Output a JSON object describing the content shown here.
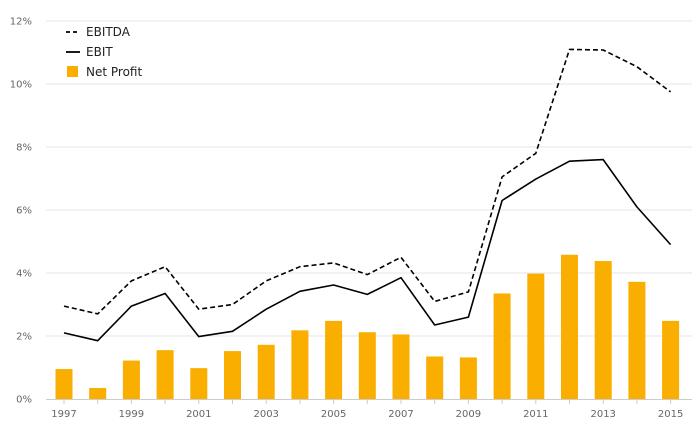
{
  "chart_data": {
    "type": "bar",
    "categories": [
      "1997",
      "1998",
      "1999",
      "2000",
      "2001",
      "2002",
      "2003",
      "2004",
      "2005",
      "2006",
      "2007",
      "2008",
      "2009",
      "2010",
      "2011",
      "2012",
      "2013",
      "2014",
      "2015"
    ],
    "x_tick_labels": [
      "1997",
      "1999",
      "2001",
      "2003",
      "2005",
      "2007",
      "2009",
      "2011",
      "2013",
      "2015"
    ],
    "y_tick_labels": [
      "0%",
      "2%",
      "4%",
      "6%",
      "8%",
      "10%",
      "12%"
    ],
    "ylim": [
      0,
      12
    ],
    "y_unit": "%",
    "grid": true,
    "legend_position": "top-left",
    "series": [
      {
        "name": "EBITDA",
        "type": "line",
        "style": "dashed",
        "color": "#000000",
        "values": [
          2.95,
          2.7,
          3.75,
          4.2,
          2.85,
          3.0,
          3.75,
          4.2,
          4.32,
          3.95,
          4.5,
          3.1,
          3.4,
          7.05,
          7.8,
          11.1,
          11.08,
          10.55,
          9.75
        ]
      },
      {
        "name": "EBIT",
        "type": "line",
        "style": "solid",
        "color": "#000000",
        "values": [
          2.1,
          1.85,
          2.95,
          3.35,
          1.98,
          2.15,
          2.85,
          3.42,
          3.62,
          3.32,
          3.85,
          2.35,
          2.6,
          6.3,
          6.98,
          7.55,
          7.6,
          6.1,
          4.9
        ]
      },
      {
        "name": "Net Profit",
        "type": "bar",
        "color": "#f9ae00",
        "values": [
          0.95,
          0.35,
          1.22,
          1.55,
          0.98,
          1.52,
          1.72,
          2.18,
          2.48,
          2.12,
          2.05,
          1.35,
          1.32,
          3.35,
          3.98,
          4.58,
          4.38,
          3.72,
          2.48
        ]
      }
    ]
  }
}
